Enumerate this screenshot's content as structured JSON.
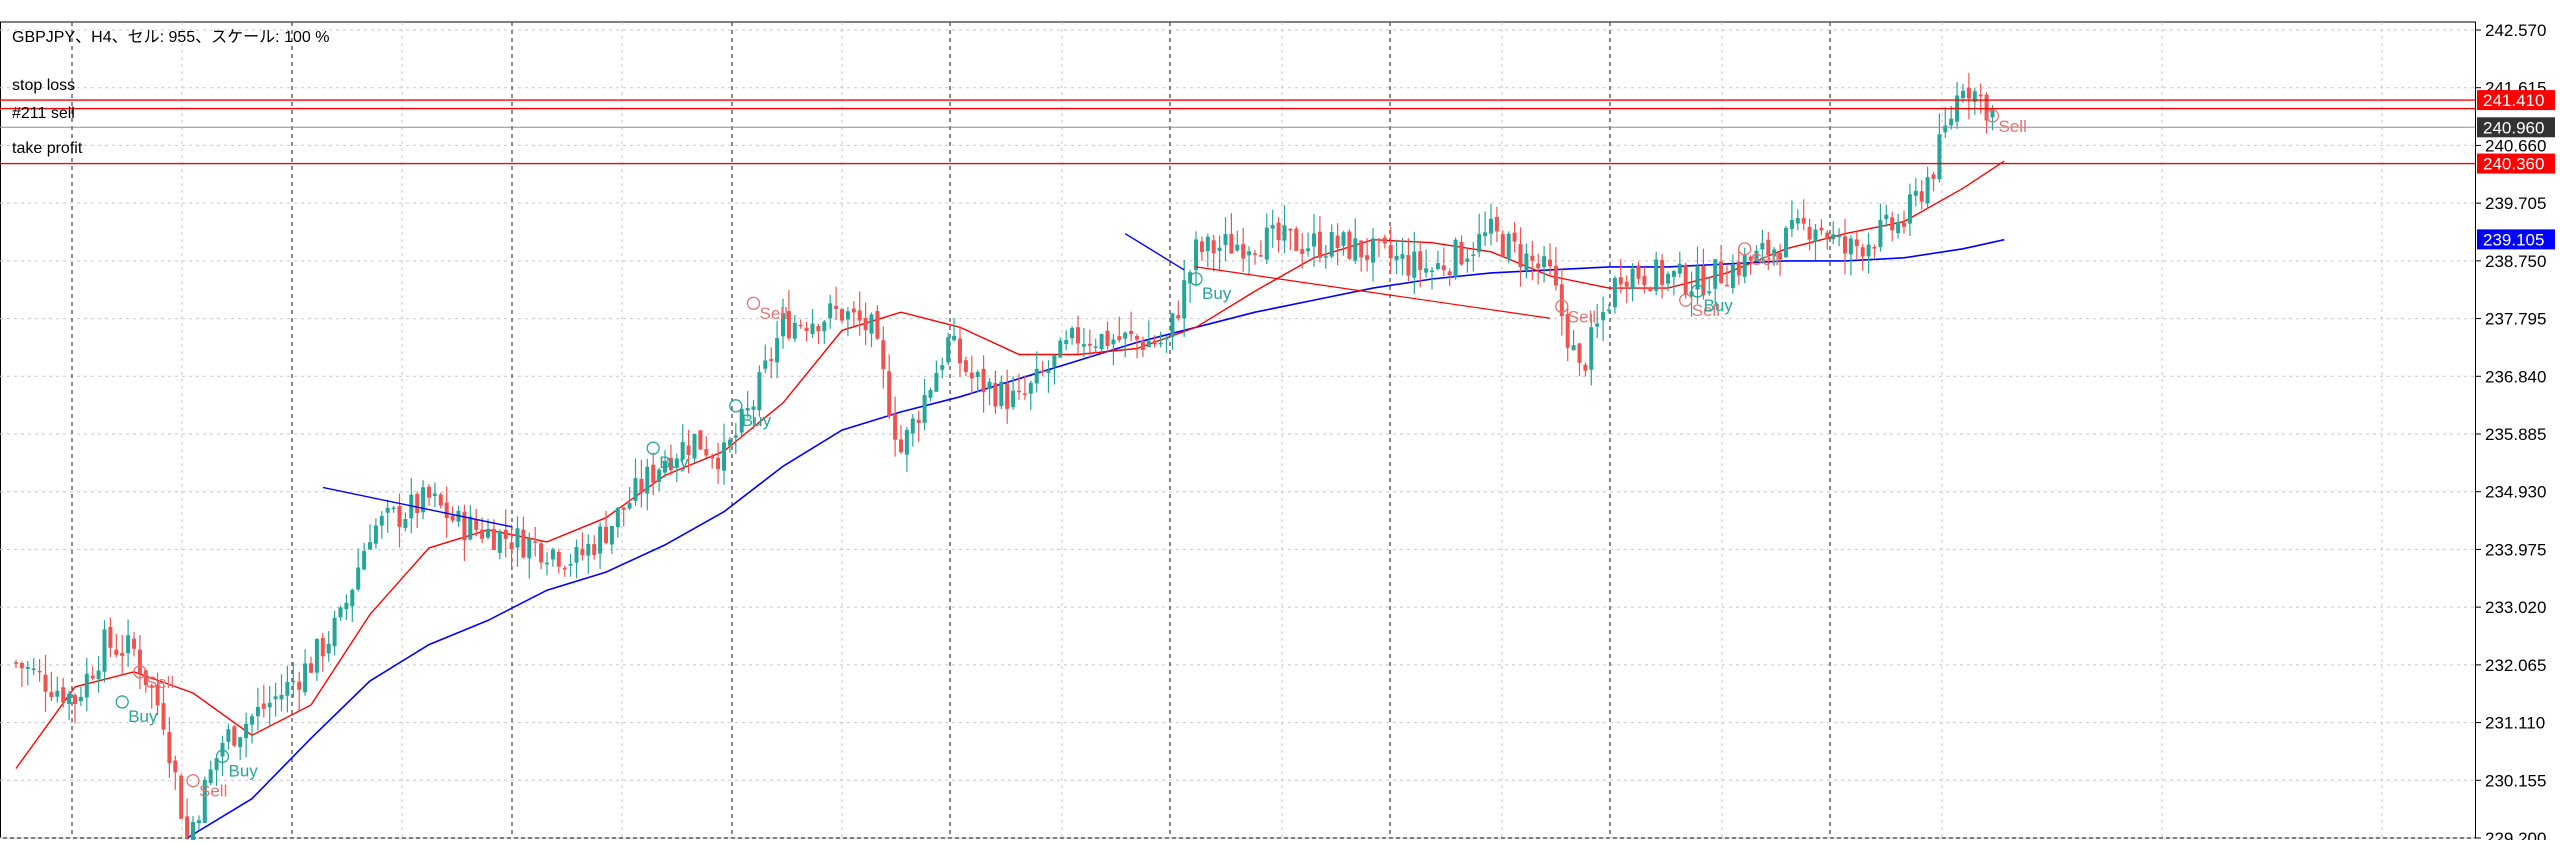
{
  "window": {
    "info": "GBPJPY、H4、セル: 955、スケール: 100 %"
  },
  "colors": {
    "bull": "#26a69a",
    "bear": "#ef5350",
    "ma_fast": "#ff0000",
    "ma_slow": "#0000ff",
    "order_line": "#ff0000",
    "entry_line": "#0000ff",
    "grid": "#c8c8c8",
    "marker_buy": "#26a69a",
    "marker_sell": "#e57373"
  },
  "order_labels": {
    "stop_loss": "stop loss",
    "position": "#211 sell",
    "take_profit": "take profit"
  },
  "price_scale": {
    "ticks": [
      "242.570",
      "241.615",
      "240.660",
      "239.705",
      "238.750",
      "237.795",
      "236.840",
      "235.885",
      "234.930",
      "233.975",
      "233.020",
      "232.065",
      "231.110",
      "230.155",
      "229.200"
    ],
    "tick_values": [
      242.57,
      241.615,
      240.66,
      239.705,
      238.75,
      237.795,
      236.84,
      235.885,
      234.93,
      233.975,
      233.02,
      232.065,
      231.11,
      230.155,
      229.2
    ]
  },
  "price_tags": [
    {
      "name": "stop-loss-price-tag",
      "text": "241.410",
      "value": 241.41,
      "bg": "#ff0000",
      "fg": "#ffffff"
    },
    {
      "name": "current-price-tag",
      "text": "240.960",
      "value": 240.96,
      "bg": "#333333",
      "fg": "#ffffff"
    },
    {
      "name": "take-profit-price-tag",
      "text": "240.360",
      "value": 240.36,
      "bg": "#ff0000",
      "fg": "#ffffff"
    },
    {
      "name": "ma-slow-price-tag",
      "text": "239.105",
      "value": 239.105,
      "bg": "#0000ff",
      "fg": "#ffffff"
    }
  ],
  "trade_markers": [
    {
      "text": "Buy",
      "type": "buy",
      "bar": 18,
      "price": 231.65
    },
    {
      "text": "Sell",
      "type": "sell",
      "bar": 21,
      "price": 231.75
    },
    {
      "text": "Sell",
      "type": "sell",
      "bar": 30,
      "price": 229.95
    },
    {
      "text": "Buy",
      "type": "buy",
      "bar": 35,
      "price": 230.75
    },
    {
      "text": "Buy",
      "type": "buy",
      "bar": 108,
      "price": 235.85
    },
    {
      "text": "Buy",
      "type": "buy",
      "bar": 122,
      "price": 236.55
    },
    {
      "text": "Sell",
      "type": "sell",
      "bar": 125,
      "price": 237.85
    },
    {
      "text": "Buy",
      "type": "buy",
      "bar": 200,
      "price": 238.65
    },
    {
      "text": "Sell",
      "type": "sell",
      "bar": 262,
      "price": 237.8
    },
    {
      "text": "Sell",
      "type": "sell",
      "bar": 283,
      "price": 237.9
    },
    {
      "text": "Buy",
      "type": "buy",
      "bar": 285,
      "price": 238.45
    },
    {
      "text": "Sell",
      "type": "sell",
      "bar": 293,
      "price": 238.75
    },
    {
      "text": "Sell",
      "type": "sell",
      "bar": 335,
      "price": 240.95
    }
  ],
  "chart_data": {
    "type": "candlestick",
    "symbol": "GBPJPY",
    "timeframe": "H4",
    "bars": 336,
    "grid": true,
    "ylim": [
      229.2,
      242.57
    ],
    "levels": {
      "stop_loss": 241.41,
      "sell_entry": 241.27,
      "current_price": 240.96,
      "take_profit": 240.36,
      "ma_slow_last": 239.105
    },
    "price_path": [
      [
        0,
        232.1
      ],
      [
        10,
        231.5
      ],
      [
        15,
        232.4
      ],
      [
        20,
        232.3
      ],
      [
        25,
        231.2
      ],
      [
        29,
        229.2
      ],
      [
        35,
        230.8
      ],
      [
        45,
        231.6
      ],
      [
        50,
        232.1
      ],
      [
        55,
        232.8
      ],
      [
        60,
        234.3
      ],
      [
        70,
        234.8
      ],
      [
        75,
        234.4
      ],
      [
        90,
        234.0
      ],
      [
        95,
        233.8
      ],
      [
        100,
        234.3
      ],
      [
        110,
        235.5
      ],
      [
        115,
        235.8
      ],
      [
        120,
        235.5
      ],
      [
        125,
        236.4
      ],
      [
        130,
        237.7
      ],
      [
        140,
        237.9
      ],
      [
        145,
        237.6
      ],
      [
        150,
        235.6
      ],
      [
        158,
        237.4
      ],
      [
        162,
        236.8
      ],
      [
        170,
        236.4
      ],
      [
        180,
        237.5
      ],
      [
        195,
        237.4
      ],
      [
        200,
        238.9
      ],
      [
        210,
        239.1
      ],
      [
        225,
        239.0
      ],
      [
        240,
        238.6
      ],
      [
        250,
        239.2
      ],
      [
        260,
        238.5
      ],
      [
        265,
        236.9
      ],
      [
        272,
        238.6
      ],
      [
        285,
        238.4
      ],
      [
        295,
        238.8
      ],
      [
        305,
        239.4
      ],
      [
        310,
        238.9
      ],
      [
        320,
        239.4
      ],
      [
        325,
        240.3
      ],
      [
        330,
        241.75
      ],
      [
        336,
        241.1
      ]
    ],
    "ma_fast": [
      [
        0,
        230.35
      ],
      [
        10,
        231.7
      ],
      [
        20,
        231.95
      ],
      [
        30,
        231.6
      ],
      [
        40,
        230.9
      ],
      [
        50,
        231.4
      ],
      [
        60,
        232.9
      ],
      [
        70,
        234.0
      ],
      [
        80,
        234.3
      ],
      [
        90,
        234.1
      ],
      [
        100,
        234.5
      ],
      [
        110,
        235.2
      ],
      [
        120,
        235.6
      ],
      [
        130,
        236.4
      ],
      [
        140,
        237.6
      ],
      [
        150,
        237.9
      ],
      [
        160,
        237.65
      ],
      [
        170,
        237.2
      ],
      [
        180,
        237.2
      ],
      [
        190,
        237.3
      ],
      [
        200,
        237.65
      ],
      [
        210,
        238.25
      ],
      [
        220,
        238.8
      ],
      [
        230,
        239.1
      ],
      [
        240,
        239.05
      ],
      [
        250,
        238.9
      ],
      [
        260,
        238.5
      ],
      [
        270,
        238.3
      ],
      [
        280,
        238.3
      ],
      [
        290,
        238.55
      ],
      [
        300,
        238.95
      ],
      [
        310,
        239.2
      ],
      [
        320,
        239.4
      ],
      [
        330,
        239.95
      ],
      [
        337,
        240.4
      ]
    ],
    "ma_slow": [
      [
        29,
        229.2
      ],
      [
        40,
        229.85
      ],
      [
        50,
        230.85
      ],
      [
        60,
        231.8
      ],
      [
        70,
        232.4
      ],
      [
        80,
        232.8
      ],
      [
        90,
        233.3
      ],
      [
        100,
        233.6
      ],
      [
        110,
        234.05
      ],
      [
        120,
        234.6
      ],
      [
        130,
        235.35
      ],
      [
        140,
        235.95
      ],
      [
        150,
        236.25
      ],
      [
        160,
        236.5
      ],
      [
        170,
        236.8
      ],
      [
        180,
        237.1
      ],
      [
        190,
        237.4
      ],
      [
        200,
        237.65
      ],
      [
        210,
        237.9
      ],
      [
        220,
        238.1
      ],
      [
        230,
        238.3
      ],
      [
        240,
        238.45
      ],
      [
        250,
        238.55
      ],
      [
        260,
        238.6
      ],
      [
        270,
        238.65
      ],
      [
        280,
        238.65
      ],
      [
        290,
        238.7
      ],
      [
        300,
        238.75
      ],
      [
        310,
        238.75
      ],
      [
        320,
        238.8
      ],
      [
        330,
        238.95
      ],
      [
        337,
        239.1
      ]
    ]
  }
}
